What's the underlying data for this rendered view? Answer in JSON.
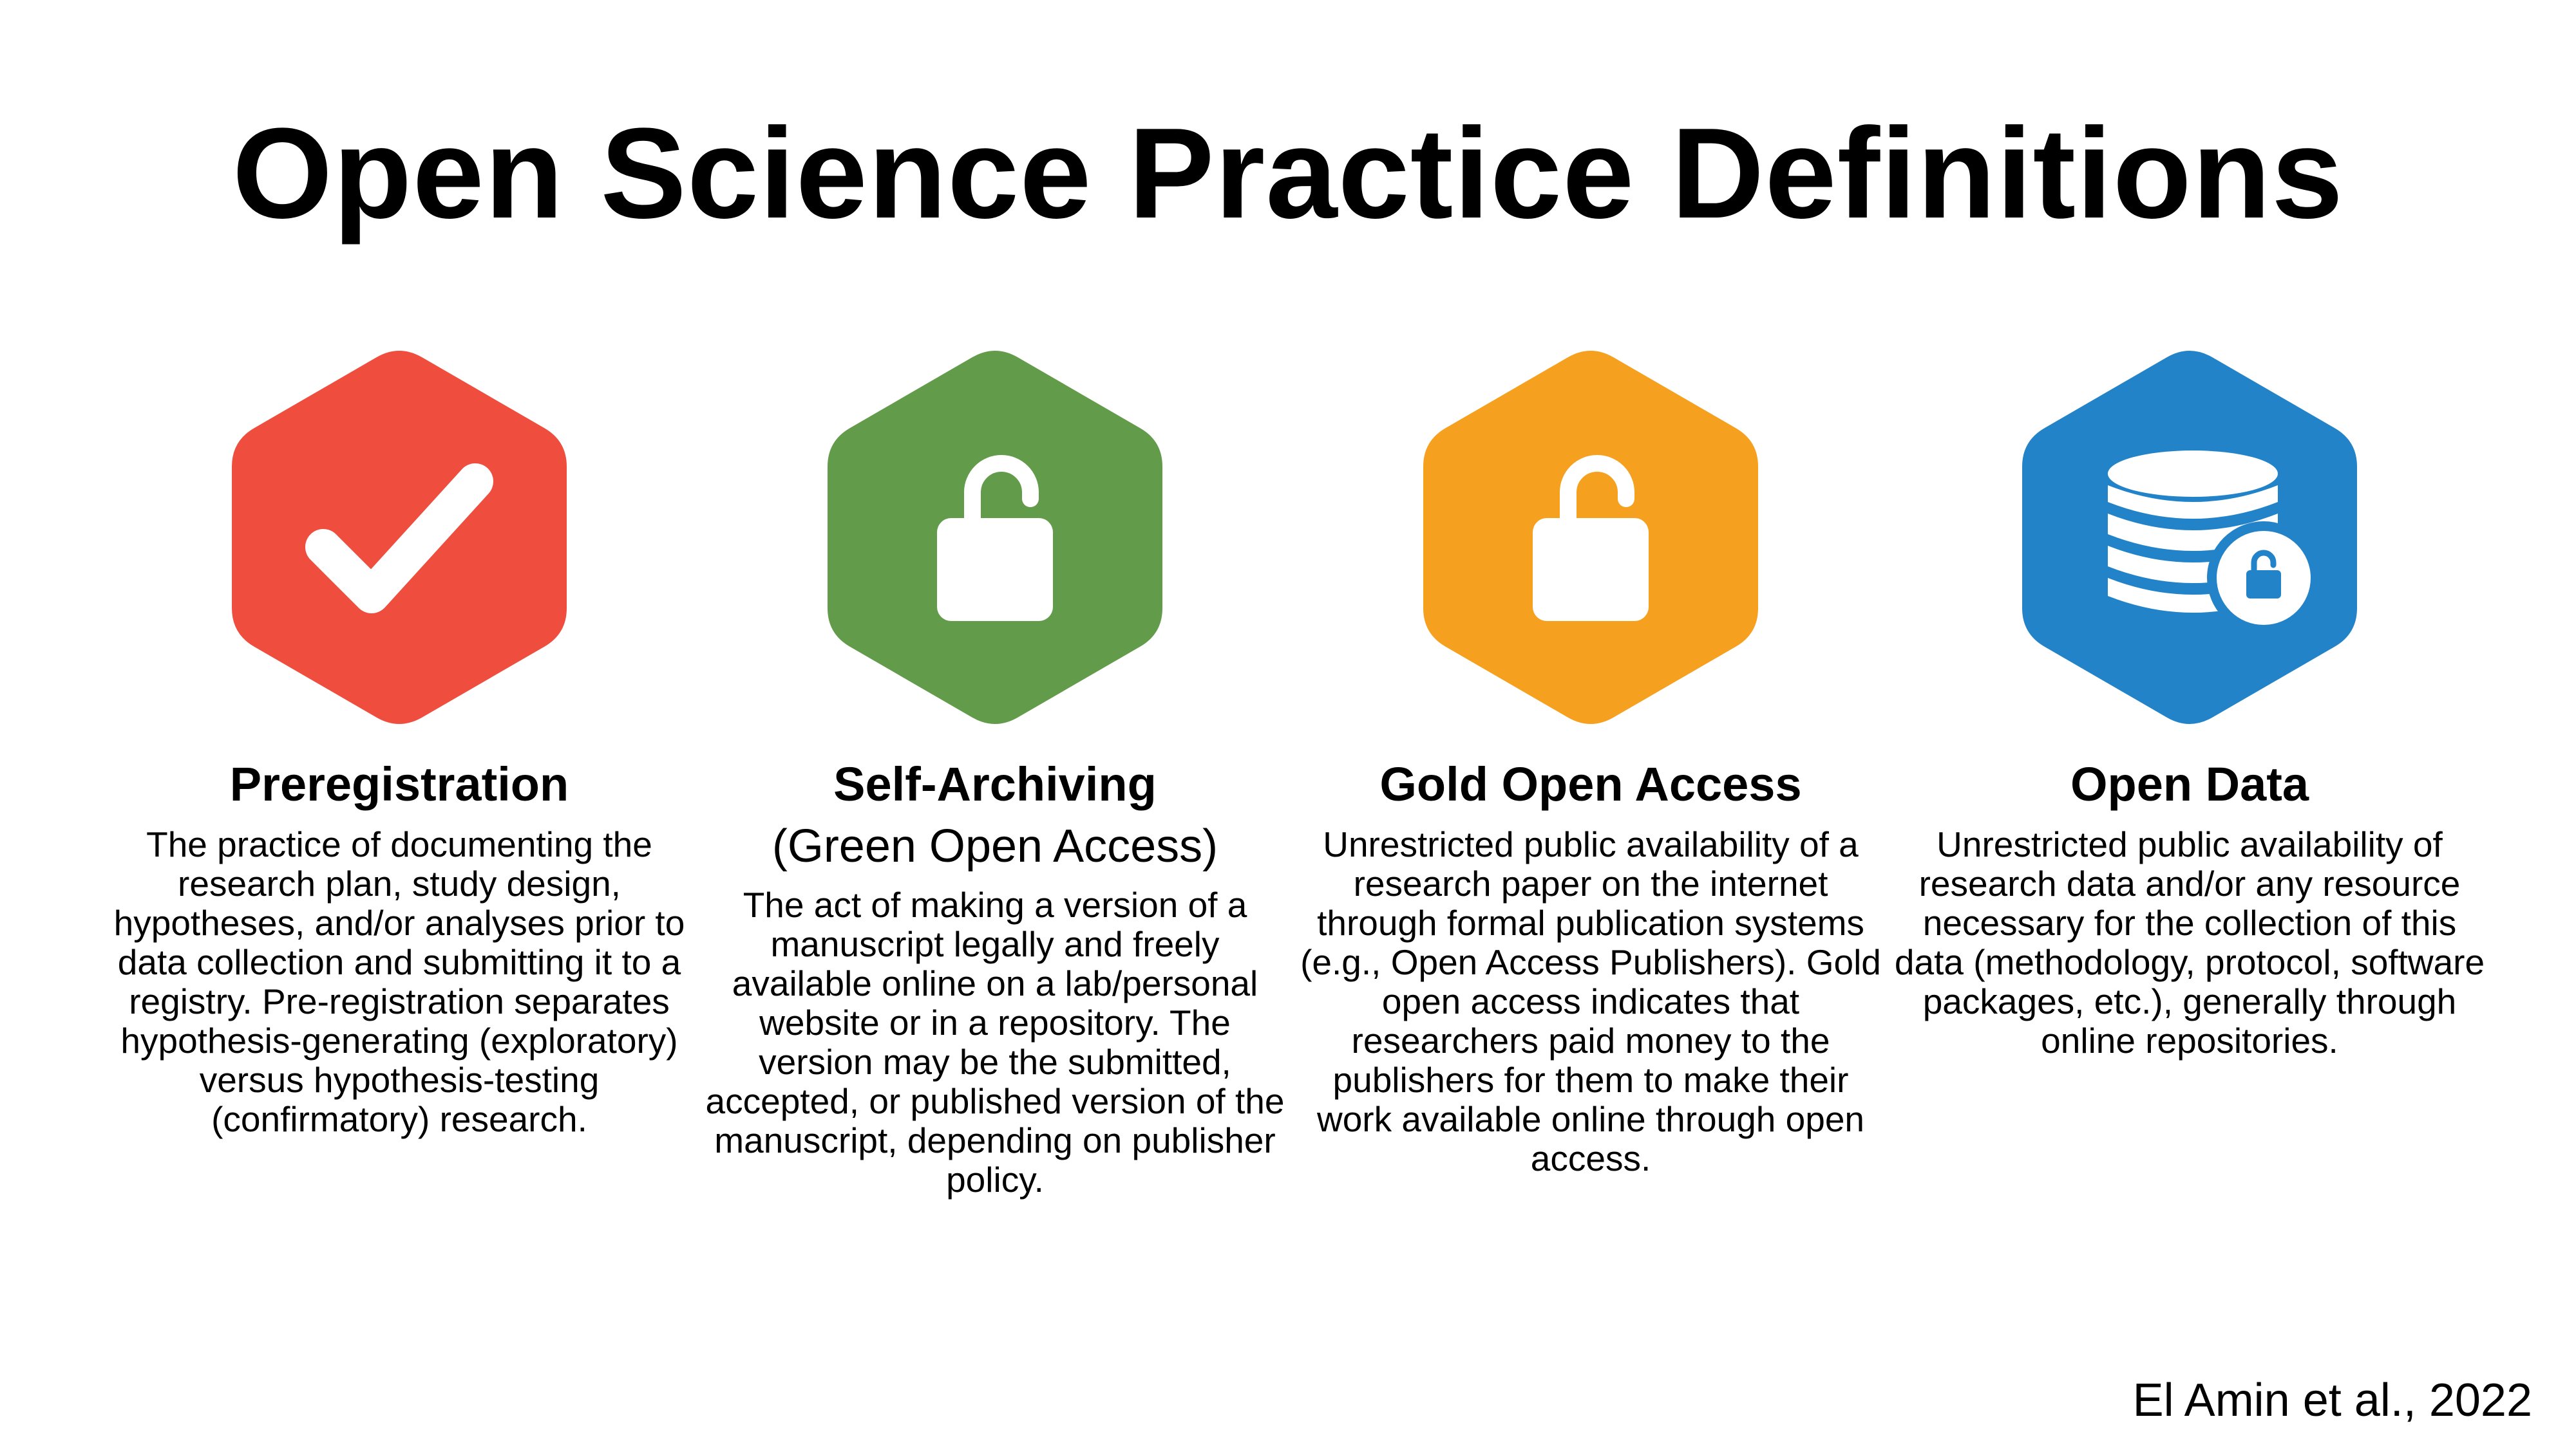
{
  "title": "Open Science Practice Definitions",
  "practices": [
    {
      "name": "Preregistration",
      "subtitle": "",
      "description": "The practice of documenting the research plan, study design, hypotheses, and/or analyses prior to data collection and submitting it to a registry. Pre-registration separates hypothesis-generating (exploratory) versus hypothesis-testing (confirmatory) research.",
      "icon": "checkmark-icon",
      "color": "#EF4E3E"
    },
    {
      "name": "Self-Archiving",
      "subtitle": "(Green Open Access)",
      "description": "The act of making a version of a manuscript legally and freely available online on a lab/personal website or in a repository. The version may be the submitted, accepted, or published version of the manuscript, depending on publisher policy.",
      "icon": "open-padlock-icon",
      "color": "#629C4A"
    },
    {
      "name": "Gold Open Access",
      "subtitle": "",
      "description": "Unrestricted public availability of a research paper on the internet through formal publication systems (e.g., Open Access Publishers). Gold open access indicates that researchers paid money to the publishers for them to make their work available online through open access.",
      "icon": "open-padlock-icon",
      "color": "#F6A01F"
    },
    {
      "name": "Open Data",
      "subtitle": "",
      "description": "Unrestricted public availability of research data and/or any resource necessary for the collection of this data (methodology, protocol, software packages, etc.), generally through online repositories.",
      "icon": "database-unlocked-icon",
      "color": "#2283C8"
    }
  ],
  "citation": "El Amin et al., 2022"
}
